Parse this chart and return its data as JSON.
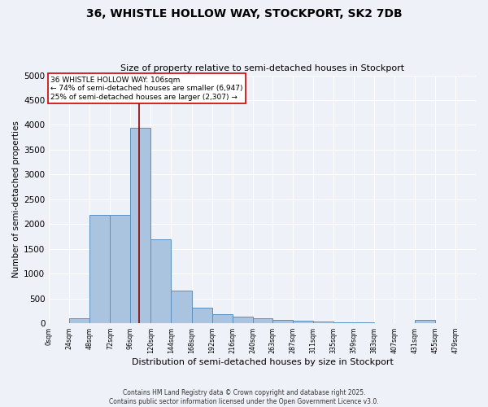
{
  "title_line1": "36, WHISTLE HOLLOW WAY, STOCKPORT, SK2 7DB",
  "title_line2": "Size of property relative to semi-detached houses in Stockport",
  "xlabel": "Distribution of semi-detached houses by size in Stockport",
  "ylabel": "Number of semi-detached properties",
  "bar_values": [
    0,
    100,
    2180,
    2190,
    3940,
    1700,
    660,
    320,
    175,
    130,
    105,
    75,
    55,
    30,
    20,
    10,
    5,
    0,
    60,
    0,
    0
  ],
  "bin_edges": [
    0,
    24,
    48,
    72,
    96,
    120,
    144,
    168,
    192,
    216,
    240,
    263,
    287,
    311,
    335,
    359,
    383,
    407,
    431,
    455,
    479,
    503
  ],
  "bar_color": "#aac4e0",
  "bar_edge_color": "#5a8fc0",
  "vline_x": 106,
  "vline_color": "#8b0000",
  "annotation_title": "36 WHISTLE HOLLOW WAY: 106sqm",
  "annotation_line1": "← 74% of semi-detached houses are smaller (6,947)",
  "annotation_line2": "25% of semi-detached houses are larger (2,307) →",
  "annotation_box_color": "#ffffff",
  "annotation_box_edge": "#cc0000",
  "ylim": [
    0,
    5000
  ],
  "yticks": [
    0,
    500,
    1000,
    1500,
    2000,
    2500,
    3000,
    3500,
    4000,
    4500,
    5000
  ],
  "bg_color": "#eef2f8",
  "footer_line1": "Contains HM Land Registry data © Crown copyright and database right 2025.",
  "footer_line2": "Contains public sector information licensed under the Open Government Licence v3.0."
}
